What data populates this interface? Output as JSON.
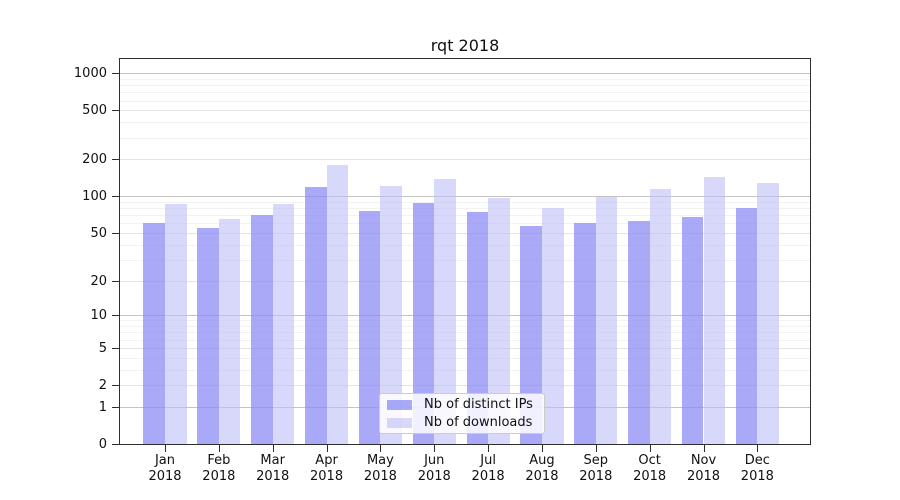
{
  "title": "rqt 2018",
  "chart_data": {
    "type": "bar",
    "title": "rqt 2018",
    "scale": "log1p",
    "grid": true,
    "legend_position": "lower center",
    "categories": [
      "Jan",
      "Feb",
      "Mar",
      "Apr",
      "May",
      "Jun",
      "Jul",
      "Aug",
      "Sep",
      "Oct",
      "Nov",
      "Dec"
    ],
    "category_year": "2018",
    "series": [
      {
        "name": "Nb of distinct IPs",
        "color": "rgba(140,140,244,0.75)",
        "values": [
          61,
          55,
          70,
          120,
          76,
          89,
          75,
          57,
          61,
          63,
          68,
          81
        ]
      },
      {
        "name": "Nb of downloads",
        "color": "rgba(190,190,247,0.6)",
        "values": [
          87,
          65,
          86,
          181,
          122,
          138,
          97,
          81,
          99,
          114,
          145,
          128
        ]
      }
    ],
    "yticks": [
      0,
      1,
      2,
      5,
      10,
      20,
      50,
      100,
      200,
      500,
      1000
    ],
    "ylim": [
      0,
      1300
    ]
  },
  "colors": {
    "gridline_major": "#c3c3c3",
    "gridline_sub": "#e4e4e4",
    "gridline_minor": "#f2f2f2",
    "spine": "#2e2e2e"
  }
}
